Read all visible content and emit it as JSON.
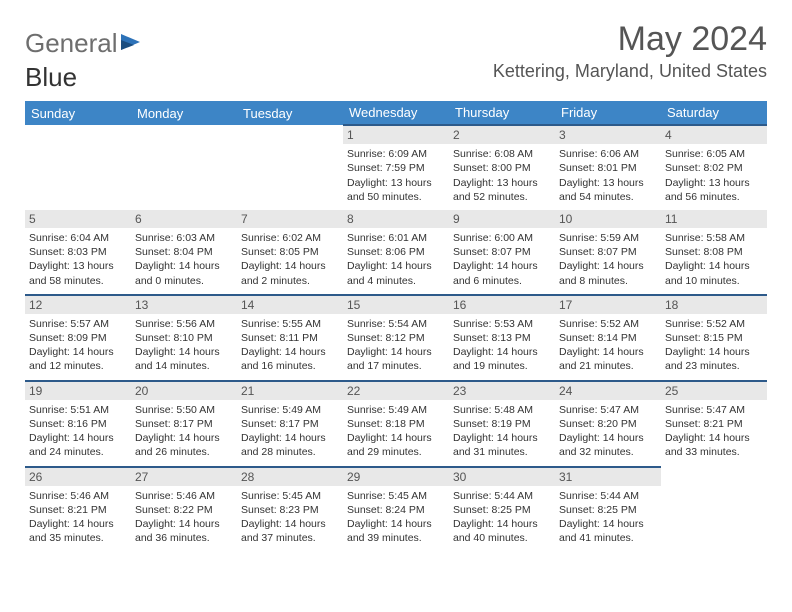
{
  "brand": {
    "part1": "General",
    "part2": "Blue"
  },
  "title": "May 2024",
  "location": "Kettering, Maryland, United States",
  "colors": {
    "header_bg": "#3d85c6",
    "row_border": "#2d5a8a",
    "daynum_bg": "#e8e8e8",
    "logo_gray": "#6e6e6e",
    "logo_blue": "#2d72b8"
  },
  "day_headers": [
    "Sunday",
    "Monday",
    "Tuesday",
    "Wednesday",
    "Thursday",
    "Friday",
    "Saturday"
  ],
  "weeks": [
    [
      null,
      null,
      null,
      {
        "n": "1",
        "sr": "6:09 AM",
        "ss": "7:59 PM",
        "dl": "13 hours and 50 minutes."
      },
      {
        "n": "2",
        "sr": "6:08 AM",
        "ss": "8:00 PM",
        "dl": "13 hours and 52 minutes."
      },
      {
        "n": "3",
        "sr": "6:06 AM",
        "ss": "8:01 PM",
        "dl": "13 hours and 54 minutes."
      },
      {
        "n": "4",
        "sr": "6:05 AM",
        "ss": "8:02 PM",
        "dl": "13 hours and 56 minutes."
      }
    ],
    [
      {
        "n": "5",
        "sr": "6:04 AM",
        "ss": "8:03 PM",
        "dl": "13 hours and 58 minutes."
      },
      {
        "n": "6",
        "sr": "6:03 AM",
        "ss": "8:04 PM",
        "dl": "14 hours and 0 minutes."
      },
      {
        "n": "7",
        "sr": "6:02 AM",
        "ss": "8:05 PM",
        "dl": "14 hours and 2 minutes."
      },
      {
        "n": "8",
        "sr": "6:01 AM",
        "ss": "8:06 PM",
        "dl": "14 hours and 4 minutes."
      },
      {
        "n": "9",
        "sr": "6:00 AM",
        "ss": "8:07 PM",
        "dl": "14 hours and 6 minutes."
      },
      {
        "n": "10",
        "sr": "5:59 AM",
        "ss": "8:07 PM",
        "dl": "14 hours and 8 minutes."
      },
      {
        "n": "11",
        "sr": "5:58 AM",
        "ss": "8:08 PM",
        "dl": "14 hours and 10 minutes."
      }
    ],
    [
      {
        "n": "12",
        "sr": "5:57 AM",
        "ss": "8:09 PM",
        "dl": "14 hours and 12 minutes."
      },
      {
        "n": "13",
        "sr": "5:56 AM",
        "ss": "8:10 PM",
        "dl": "14 hours and 14 minutes."
      },
      {
        "n": "14",
        "sr": "5:55 AM",
        "ss": "8:11 PM",
        "dl": "14 hours and 16 minutes."
      },
      {
        "n": "15",
        "sr": "5:54 AM",
        "ss": "8:12 PM",
        "dl": "14 hours and 17 minutes."
      },
      {
        "n": "16",
        "sr": "5:53 AM",
        "ss": "8:13 PM",
        "dl": "14 hours and 19 minutes."
      },
      {
        "n": "17",
        "sr": "5:52 AM",
        "ss": "8:14 PM",
        "dl": "14 hours and 21 minutes."
      },
      {
        "n": "18",
        "sr": "5:52 AM",
        "ss": "8:15 PM",
        "dl": "14 hours and 23 minutes."
      }
    ],
    [
      {
        "n": "19",
        "sr": "5:51 AM",
        "ss": "8:16 PM",
        "dl": "14 hours and 24 minutes."
      },
      {
        "n": "20",
        "sr": "5:50 AM",
        "ss": "8:17 PM",
        "dl": "14 hours and 26 minutes."
      },
      {
        "n": "21",
        "sr": "5:49 AM",
        "ss": "8:17 PM",
        "dl": "14 hours and 28 minutes."
      },
      {
        "n": "22",
        "sr": "5:49 AM",
        "ss": "8:18 PM",
        "dl": "14 hours and 29 minutes."
      },
      {
        "n": "23",
        "sr": "5:48 AM",
        "ss": "8:19 PM",
        "dl": "14 hours and 31 minutes."
      },
      {
        "n": "24",
        "sr": "5:47 AM",
        "ss": "8:20 PM",
        "dl": "14 hours and 32 minutes."
      },
      {
        "n": "25",
        "sr": "5:47 AM",
        "ss": "8:21 PM",
        "dl": "14 hours and 33 minutes."
      }
    ],
    [
      {
        "n": "26",
        "sr": "5:46 AM",
        "ss": "8:21 PM",
        "dl": "14 hours and 35 minutes."
      },
      {
        "n": "27",
        "sr": "5:46 AM",
        "ss": "8:22 PM",
        "dl": "14 hours and 36 minutes."
      },
      {
        "n": "28",
        "sr": "5:45 AM",
        "ss": "8:23 PM",
        "dl": "14 hours and 37 minutes."
      },
      {
        "n": "29",
        "sr": "5:45 AM",
        "ss": "8:24 PM",
        "dl": "14 hours and 39 minutes."
      },
      {
        "n": "30",
        "sr": "5:44 AM",
        "ss": "8:25 PM",
        "dl": "14 hours and 40 minutes."
      },
      {
        "n": "31",
        "sr": "5:44 AM",
        "ss": "8:25 PM",
        "dl": "14 hours and 41 minutes."
      },
      null
    ]
  ],
  "labels": {
    "sunrise": "Sunrise:",
    "sunset": "Sunset:",
    "daylight": "Daylight:"
  }
}
